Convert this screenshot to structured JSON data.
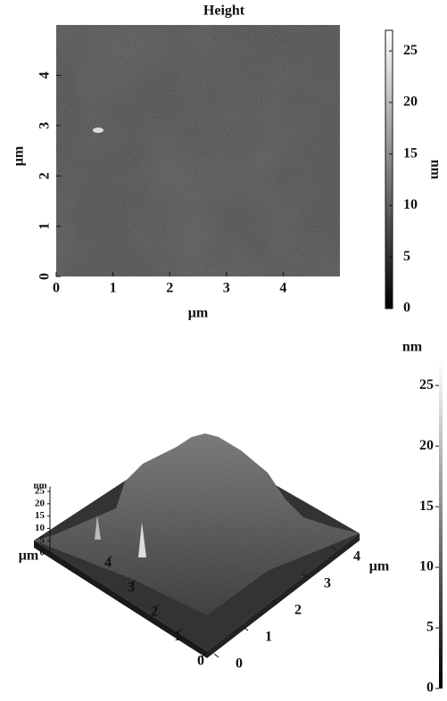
{
  "chart_data": [
    {
      "type": "heatmap",
      "title": "Height",
      "xlabel": "μm",
      "ylabel": "μm",
      "xlim": [
        0,
        5
      ],
      "xticks": [
        0,
        1,
        2,
        3,
        4
      ],
      "ylim": [
        0,
        5
      ],
      "yticks": [
        0,
        1,
        2,
        3,
        4
      ],
      "colorbar": {
        "label": "nm",
        "lim": [
          0,
          27
        ],
        "ticks": [
          0,
          5,
          10,
          15,
          20,
          25
        ]
      }
    },
    {
      "type": "surface",
      "xlabel": "μm",
      "ylabel": "μm",
      "zlabel": "nm",
      "xlim": [
        0,
        5
      ],
      "xticks": [
        0,
        1,
        2,
        3,
        4
      ],
      "ylim": [
        0,
        5
      ],
      "yticks": [
        0,
        1,
        2,
        3,
        4
      ],
      "zlim": [
        0,
        27
      ],
      "zticks": [
        0,
        5,
        10,
        15,
        20,
        25
      ],
      "colorbar": {
        "label": "nm",
        "lim": [
          0,
          27
        ],
        "ticks": [
          0,
          5,
          10,
          15,
          20,
          25
        ]
      }
    }
  ]
}
